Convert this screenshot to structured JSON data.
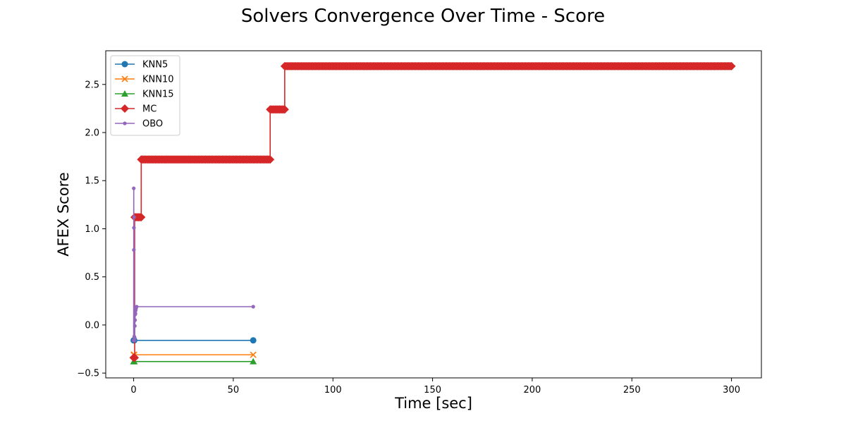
{
  "chart_data": {
    "type": "line",
    "title": "Solvers Convergence Over Time - Score",
    "xlabel": "Time [sec]",
    "ylabel": "AFEX Score",
    "xlim": [
      -14,
      315
    ],
    "ylim": [
      -0.55,
      2.85
    ],
    "xticks": [
      0,
      50,
      100,
      150,
      200,
      250,
      300
    ],
    "yticks": [
      -0.5,
      0.0,
      0.5,
      1.0,
      1.5,
      2.0,
      2.5
    ],
    "xtick_labels": [
      "0",
      "50",
      "100",
      "150",
      "200",
      "250",
      "300"
    ],
    "ytick_labels": [
      "−0.5",
      "0.0",
      "0.5",
      "1.0",
      "1.5",
      "2.0",
      "2.5"
    ],
    "grid": false,
    "legend_position": "upper-left",
    "series": [
      {
        "name": "KNN5",
        "color": "#1f77b4",
        "marker": "circle",
        "x": [
          0,
          0.3,
          60
        ],
        "y": [
          -0.16,
          -0.16,
          -0.16
        ]
      },
      {
        "name": "KNN10",
        "color": "#ff7f0e",
        "marker": "x",
        "x": [
          0,
          0.3,
          60
        ],
        "y": [
          -0.31,
          -0.31,
          -0.31
        ]
      },
      {
        "name": "KNN15",
        "color": "#2ca02c",
        "marker": "triangle",
        "x": [
          0,
          0.3,
          60
        ],
        "y": [
          -0.38,
          -0.38,
          -0.38
        ]
      },
      {
        "name": "MC",
        "color": "#d62728",
        "marker": "diamond",
        "x": [
          0,
          0.5,
          0.5,
          3.8,
          3.8,
          68.5,
          68.5,
          75.8,
          75.8,
          300
        ],
        "y": [
          -0.34,
          -0.34,
          1.12,
          1.12,
          1.72,
          1.72,
          2.24,
          2.24,
          2.69,
          2.69
        ]
      },
      {
        "name": "OBO",
        "color": "#9467bd",
        "marker": "point",
        "x": [
          0,
          0.05,
          0.1,
          0.15,
          0.2,
          0.3,
          0.4,
          0.5,
          0.6,
          0.7,
          0.8,
          0.9,
          1.0,
          1.2,
          1.5,
          60
        ],
        "y": [
          -0.16,
          1.42,
          0.78,
          1.01,
          1.12,
          -0.12,
          -0.16,
          -0.13,
          -0.01,
          0.05,
          0.11,
          0.12,
          0.15,
          0.17,
          0.19,
          0.19
        ]
      }
    ]
  }
}
